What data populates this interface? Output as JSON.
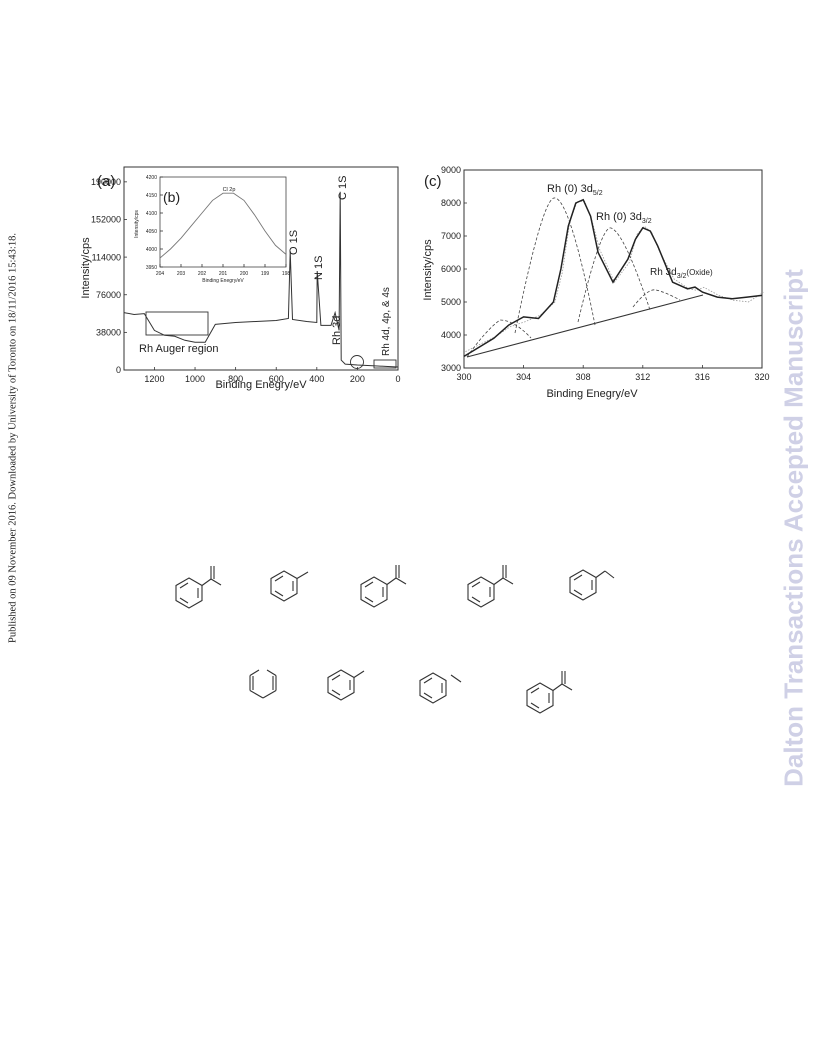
{
  "side_note": "Published on 09 November 2016. Downloaded by University of Toronto on 18/11/2016 15:43:18.",
  "watermark": "Dalton Transactions Accepted Manuscript",
  "figure": {
    "panel_a": {
      "label": "(a)",
      "xlabel": "Binding Enegry/eV",
      "ylabel": "Intensity/cps",
      "xticks": [
        "1200",
        "1000",
        "800",
        "600",
        "400",
        "200",
        "0"
      ],
      "yticks": [
        "0",
        "38000",
        "76000",
        "114000",
        "152000",
        "190000"
      ],
      "annotations": {
        "o1s": "O 1S",
        "n1s": "N 1S",
        "c1s": "C 1S",
        "rh3d": "Rh 3d",
        "rh4d": "Rh 4d, 4p, & 4s",
        "auger": "Rh Auger region"
      }
    },
    "panel_b": {
      "label": "(b)",
      "title": "Cl 2p",
      "xlabel": "Binding Enegry/eV",
      "ylabel": "Intensity/cps",
      "xticks": [
        "204",
        "203",
        "202",
        "201",
        "200",
        "199",
        "198"
      ],
      "yticks": [
        "3950",
        "4000",
        "4050",
        "4100",
        "4150",
        "4200"
      ]
    },
    "panel_c": {
      "label": "(c)",
      "xlabel": "Binding Enegry/eV",
      "ylabel": "Intensity/cps",
      "xticks": [
        "300",
        "304",
        "308",
        "312",
        "316",
        "320"
      ],
      "yticks": [
        "3000",
        "4000",
        "5000",
        "6000",
        "7000",
        "8000",
        "9000"
      ],
      "peak1_main": "Rh (0) 3d",
      "peak1_sub": "5/2",
      "peak2_main": "Rh (0) 3d",
      "peak2_sub": "3/2",
      "peak3_main": "Rh 3d",
      "peak3_sub": "3/2",
      "peak3_tail": "(Oxide)"
    }
  },
  "chart_data": [
    {
      "type": "line",
      "title": "",
      "xlabel": "Binding Enegry/eV",
      "ylabel": "Intensity/cps",
      "xlim": [
        1350,
        0
      ],
      "ylim": [
        0,
        205000
      ],
      "series": [
        {
          "x": [
            1350,
            1300,
            1250,
            1200,
            1150,
            1100,
            1050,
            1000,
            950,
            900,
            800,
            700,
            600,
            540,
            531,
            520,
            450,
            400,
            398,
            380,
            330,
            310,
            290,
            285,
            280,
            260,
            200,
            100,
            50,
            0
          ],
          "values": [
            58000,
            56000,
            57000,
            40000,
            35000,
            34000,
            30000,
            28000,
            28000,
            46000,
            48000,
            49000,
            50000,
            52000,
            120000,
            51000,
            49000,
            48000,
            100000,
            45000,
            45000,
            58000,
            40000,
            180000,
            10000,
            6000,
            5000,
            4000,
            3500,
            3000
          ]
        }
      ]
    },
    {
      "type": "line",
      "title": "Cl 2p",
      "xlabel": "Binding Enegry/eV",
      "ylabel": "Intensity/cps",
      "xlim": [
        204,
        198
      ],
      "ylim": [
        3950,
        4200
      ],
      "series": [
        {
          "x": [
            204,
            203.5,
            203,
            202.5,
            202,
            201.5,
            201,
            200.5,
            200,
            199.5,
            199,
            198.5,
            198
          ],
          "values": [
            3975,
            4000,
            4030,
            4065,
            4100,
            4135,
            4155,
            4155,
            4135,
            4095,
            4050,
            4010,
            3985
          ]
        }
      ]
    },
    {
      "type": "line",
      "title": "",
      "xlabel": "Binding Enegry/eV",
      "ylabel": "Intensity/cps",
      "xlim": [
        300,
        320
      ],
      "ylim": [
        3000,
        9000
      ],
      "series": [
        {
          "name": "Rh (0) 3d5/2",
          "x": [
            300,
            302,
            303,
            304,
            305,
            306,
            306.5,
            307,
            307.5,
            308,
            308.5,
            309,
            310,
            311,
            311.5,
            312,
            312.5,
            313,
            314,
            315,
            315.5,
            316,
            317,
            318,
            319,
            320
          ],
          "values": [
            3350,
            3900,
            4300,
            4550,
            4500,
            5000,
            6000,
            7300,
            8000,
            8100,
            7600,
            6500,
            5600,
            6300,
            6900,
            7250,
            7150,
            6700,
            5600,
            5400,
            5450,
            5300,
            5150,
            5100,
            5150,
            5200
          ]
        }
      ]
    }
  ]
}
